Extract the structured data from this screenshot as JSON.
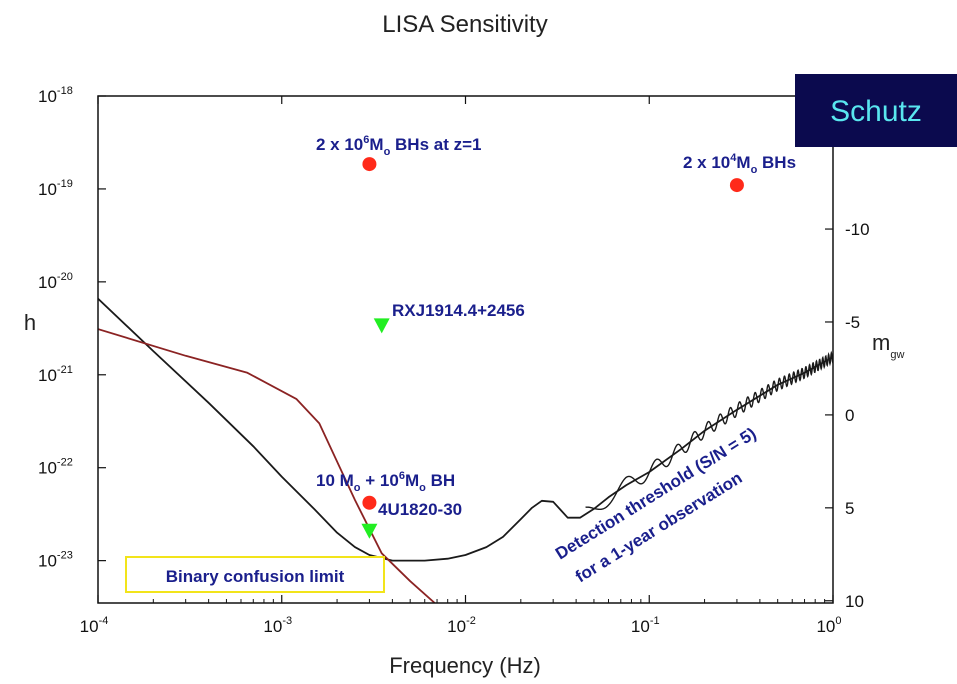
{
  "badge": {
    "text": "Schutz",
    "bg": "#0b0a4e",
    "fg": "#59e6ef"
  },
  "chart_data": {
    "type": "line",
    "title": "LISA Sensitivity",
    "xlabel": "Frequency (Hz)",
    "ylabel": "h",
    "y2label": "m",
    "y2label_sub": "gw",
    "x_scale": "log",
    "y_scale": "log",
    "xlim": [
      0.0001,
      1
    ],
    "ylim": [
      3.5e-24,
      1e-18
    ],
    "x_ticks": [
      {
        "value": 0.0001,
        "base": "10",
        "exp": "-4"
      },
      {
        "value": 0.001,
        "base": "10",
        "exp": "-3"
      },
      {
        "value": 0.01,
        "base": "10",
        "exp": "-2"
      },
      {
        "value": 0.1,
        "base": "10",
        "exp": "-1"
      },
      {
        "value": 1,
        "base": "10",
        "exp": "0"
      }
    ],
    "y_ticks": [
      {
        "value": 1e-18,
        "base": "10",
        "exp": "-18"
      },
      {
        "value": 1e-19,
        "base": "10",
        "exp": "-19"
      },
      {
        "value": 1e-20,
        "base": "10",
        "exp": "-20"
      },
      {
        "value": 1e-21,
        "base": "10",
        "exp": "-21"
      },
      {
        "value": 1e-22,
        "base": "10",
        "exp": "-22"
      },
      {
        "value": 1e-23,
        "base": "10",
        "exp": "-23"
      }
    ],
    "y2_ticks": [
      {
        "label": "-10",
        "h": 3.7e-20
      },
      {
        "label": "-5",
        "h": 3.7e-21
      },
      {
        "label": "0",
        "h": 3.7e-22
      },
      {
        "label": "5",
        "h": 3.7e-23
      },
      {
        "label": "10",
        "h": 3.7e-24
      }
    ],
    "series": [
      {
        "color": "#1a1a1a",
        "x": [
          0.0001,
          0.0002,
          0.0004,
          0.0007,
          0.001,
          0.0015,
          0.002,
          0.0025,
          0.003,
          0.004,
          0.006,
          0.008,
          0.01,
          0.013,
          0.016,
          0.02,
          0.023,
          0.026,
          0.03,
          0.033,
          0.036,
          0.042,
          0.05,
          0.06,
          0.075,
          0.1,
          0.15,
          0.2,
          0.3,
          0.5,
          0.7,
          1
        ],
        "y": [
          6.6e-21,
          1.8e-21,
          5e-22,
          1.7e-22,
          8e-23,
          3.6e-23,
          2e-23,
          1.4e-23,
          1.15e-23,
          1e-23,
          1e-23,
          1.05e-23,
          1.15e-23,
          1.4e-23,
          1.8e-23,
          2.8e-23,
          3.7e-23,
          4.4e-23,
          4.3e-23,
          3.5e-23,
          2.9e-23,
          2.9e-23,
          3.6e-23,
          4.8e-23,
          6.5e-23,
          9e-23,
          1.6e-22,
          2.5e-22,
          4.2e-22,
          7.8e-22,
          1.05e-21,
          1.55e-21
        ]
      },
      {
        "color": "#8b2323",
        "x": [
          0.0001,
          0.0003,
          0.00065,
          0.0012,
          0.0016,
          0.0025,
          0.0035,
          0.005,
          0.0068
        ],
        "y": [
          3.1e-21,
          1.6e-21,
          1.05e-21,
          5.5e-22,
          3e-22,
          4.5e-23,
          1.2e-23,
          6e-24,
          3.5e-24
        ]
      }
    ],
    "points": [
      {
        "x": 0.003,
        "y": 1.85e-19,
        "marker": "circle",
        "color": "#ff2a1a"
      },
      {
        "x": 0.3,
        "y": 1.1e-19,
        "marker": "circle",
        "color": "#ff2a1a"
      },
      {
        "x": 0.0035,
        "y": 3.4e-21,
        "marker": "triangle",
        "color": "#22ee22"
      },
      {
        "x": 0.003,
        "y": 4.2e-23,
        "marker": "circle",
        "color": "#ff2a1a"
      },
      {
        "x": 0.003,
        "y": 2.1e-23,
        "marker": "triangle",
        "color": "#22ee22"
      }
    ],
    "annotations": {
      "bhs_z1": {
        "a": "2 x 10",
        "a_sup": "6",
        "b": "M",
        "b_sub": "o",
        "c": " BHs at z=1"
      },
      "bhs_1e4": {
        "a": "2 x 10",
        "a_sup": "4",
        "b": "M",
        "b_sub": "o",
        "c": " BHs"
      },
      "rxj": "RXJ1914.4+2456",
      "bh_pair": {
        "a": "10 M",
        "a_sub": "o",
        "b": " + 10",
        "b_sup": "6",
        "c": "M",
        "c_sub": "o",
        "d": " BH"
      },
      "u4": "4U1820-30",
      "threshold_line1": "Detection threshold (S/N = 5)",
      "threshold_line2": "for a 1-year observation"
    },
    "confusion_label": "Binary confusion limit"
  }
}
